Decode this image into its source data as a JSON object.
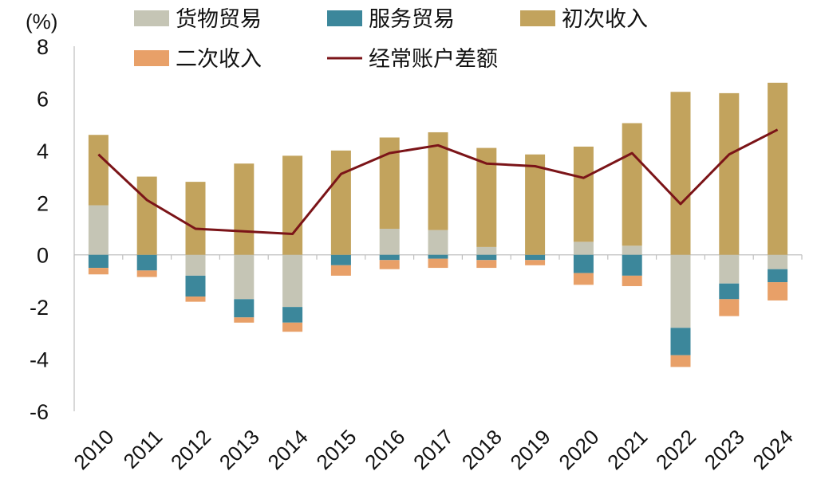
{
  "chart_data": {
    "type": "bar",
    "stacked": true,
    "unit_label": "(%)",
    "title": "",
    "xlabel": "",
    "ylabel": "",
    "ylim": [
      -6,
      8
    ],
    "yticks": [
      8,
      6,
      4,
      2,
      0,
      -2,
      -4,
      -6
    ],
    "categories": [
      "2010",
      "2011",
      "2012",
      "2013",
      "2014",
      "2015",
      "2016",
      "2017",
      "2018",
      "2019",
      "2020",
      "2021",
      "2022",
      "2023",
      "2024"
    ],
    "series": [
      {
        "name": "货物贸易",
        "kind": "bar",
        "color": "#c5c5b5",
        "values": [
          1.9,
          0,
          -0.8,
          -1.7,
          -2.0,
          0,
          1.0,
          0.95,
          0.3,
          0,
          0.5,
          0.35,
          -2.8,
          -1.1,
          -0.55
        ]
      },
      {
        "name": "服务贸易",
        "kind": "bar",
        "color": "#3c879b",
        "values": [
          -0.5,
          -0.6,
          -0.8,
          -0.7,
          -0.6,
          -0.4,
          -0.2,
          -0.15,
          -0.2,
          -0.2,
          -0.7,
          -0.8,
          -1.05,
          -0.6,
          -0.5
        ]
      },
      {
        "name": "初次收入",
        "kind": "bar",
        "color": "#c2a35d",
        "values": [
          2.7,
          3.0,
          2.8,
          3.5,
          3.8,
          4.0,
          3.5,
          3.75,
          3.8,
          3.85,
          3.65,
          4.7,
          6.25,
          6.2,
          6.6
        ]
      },
      {
        "name": "二次收入",
        "kind": "bar",
        "color": "#e8a068",
        "values": [
          -0.25,
          -0.25,
          -0.2,
          -0.2,
          -0.35,
          -0.4,
          -0.35,
          -0.35,
          -0.3,
          -0.2,
          -0.45,
          -0.4,
          -0.45,
          -0.65,
          -0.7
        ]
      },
      {
        "name": "经常账户差额",
        "kind": "line",
        "color": "#7b1418",
        "values": [
          3.85,
          2.1,
          1.0,
          0.9,
          0.8,
          3.1,
          3.9,
          4.2,
          3.5,
          3.4,
          2.95,
          3.9,
          1.95,
          3.85,
          4.8
        ]
      }
    ],
    "legend": "top"
  }
}
